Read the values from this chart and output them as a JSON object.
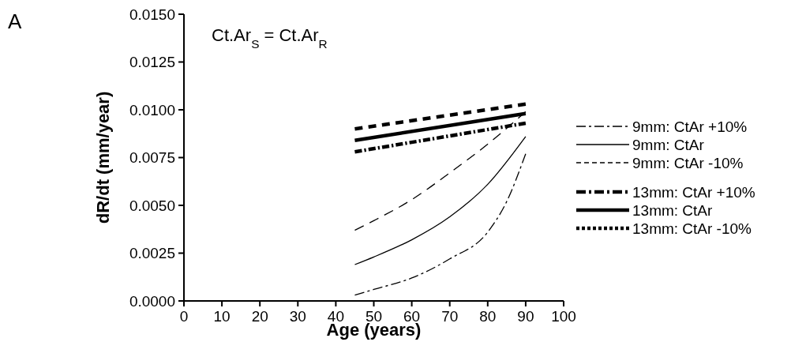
{
  "chart_data": {
    "type": "line",
    "xlabel": "Age (years)",
    "ylabel": "dR/dt (mm/year)",
    "annotations": [
      "A",
      "Ct.Ar$_{S}$ = Ct.Ar$_{R}$"
    ],
    "xlim": [
      0,
      100
    ],
    "xticks": [
      0,
      10,
      20,
      30,
      40,
      50,
      60,
      70,
      80,
      90,
      100
    ],
    "ylim": [
      0,
      0.015
    ],
    "yticks": [
      {
        "value": 0,
        "label": "0.0000"
      },
      {
        "value": 0.0025,
        "label": "0.0025"
      },
      {
        "value": 0.005,
        "label": "0.0050"
      },
      {
        "value": 0.0075,
        "label": "0.0075"
      },
      {
        "value": 0.01,
        "label": "0.0100"
      },
      {
        "value": 0.0125,
        "label": "0.0125"
      },
      {
        "value": 0.015,
        "label": "0.0150"
      }
    ],
    "grid": false,
    "legend": "right",
    "series": [
      {
        "name": "9mm: CtAr +10%",
        "color": "#000000",
        "line_style": "dashdot",
        "x": [
          45,
          50,
          60,
          70,
          80,
          85,
          90
        ],
        "values": [
          0.0003,
          0.0006,
          0.0012,
          0.0022,
          0.0036,
          0.0052,
          0.0077
        ]
      },
      {
        "name": "9mm: CtAr",
        "color": "#000000",
        "line_style": "solid",
        "x": [
          45,
          50,
          60,
          70,
          80,
          90
        ],
        "values": [
          0.0019,
          0.0023,
          0.0032,
          0.0044,
          0.0061,
          0.0086
        ]
      },
      {
        "name": "9mm: CtAr -10%",
        "color": "#000000",
        "line_style": "dashed",
        "x": [
          45,
          50,
          60,
          70,
          80,
          90
        ],
        "values": [
          0.0037,
          0.0042,
          0.0053,
          0.0067,
          0.0082,
          0.0099
        ]
      },
      {
        "name": "13mm: CtAr +10%",
        "color": "#000000",
        "line_style": "dashdot",
        "x": [
          45,
          90
        ],
        "values": [
          0.0078,
          0.0093
        ]
      },
      {
        "name": "13mm: CtAr",
        "color": "#000000",
        "line_style": "solid",
        "x": [
          45,
          90
        ],
        "values": [
          0.0084,
          0.0098
        ]
      },
      {
        "name": "13mm: CtAr -10%",
        "color": "#000000",
        "line_style": "dotted",
        "x": [
          45,
          90
        ],
        "values": [
          0.009,
          0.0103
        ]
      }
    ]
  }
}
